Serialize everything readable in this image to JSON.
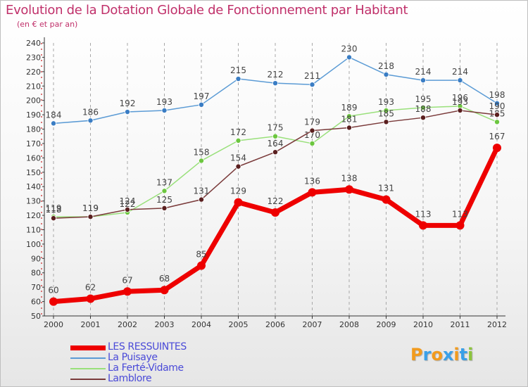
{
  "header": {
    "title": "Evolution de la Dotation Globale de Fonctionnement par Habitant",
    "subtitle": "(en € et par an)"
  },
  "brand": {
    "text": "Proxiti",
    "letters": [
      {
        "ch": "P",
        "color": "#f29b1d"
      },
      {
        "ch": "r",
        "color": "#3aa0e8"
      },
      {
        "ch": "o",
        "color": "#f29b1d"
      },
      {
        "ch": "x",
        "color": "#3aa0e8"
      },
      {
        "ch": "i",
        "color": "#f29b1d"
      },
      {
        "ch": "t",
        "color": "#3aa0e8"
      },
      {
        "ch": "i",
        "color": "#8cc43c"
      }
    ]
  },
  "chart_data": {
    "type": "line",
    "title": "Evolution de la Dotation Globale de Fonctionnement par Habitant",
    "subtitle": "(en € et par an)",
    "xlabel": "",
    "ylabel": "",
    "categories": [
      "2000",
      "2001",
      "2002",
      "2003",
      "2004",
      "2005",
      "2006",
      "2007",
      "2008",
      "2009",
      "2010",
      "2011",
      "2012"
    ],
    "ylim": [
      50,
      240
    ],
    "yticks": [
      50,
      60,
      70,
      80,
      90,
      100,
      110,
      120,
      130,
      140,
      150,
      160,
      170,
      180,
      190,
      200,
      210,
      220,
      230,
      240
    ],
    "grid": "vertical dashed",
    "legend_position": "bottom-left",
    "series": [
      {
        "name": "La Puisaye",
        "color": "#5b9bd5",
        "marker": "#3a7dc4",
        "values": [
          184,
          186,
          192,
          193,
          197,
          215,
          212,
          211,
          230,
          218,
          214,
          214,
          198
        ]
      },
      {
        "name": "La Ferté-Vidame",
        "color": "#99e07a",
        "marker": "#6cc63f",
        "values": [
          119,
          119,
          122,
          137,
          158,
          172,
          175,
          170,
          189,
          193,
          195,
          196,
          185
        ]
      },
      {
        "name": "Lamblore",
        "color": "#7a3a3a",
        "marker": "#5a1f1f",
        "values": [
          118,
          119,
          124,
          125,
          131,
          154,
          164,
          179,
          181,
          185,
          188,
          193,
          190
        ]
      },
      {
        "name": "LES RESSUINTES",
        "color": "#ee0000",
        "marker": "#ee0000",
        "values": [
          60,
          62,
          67,
          68,
          85,
          129,
          122,
          136,
          138,
          131,
          113,
          113,
          167
        ]
      }
    ]
  }
}
